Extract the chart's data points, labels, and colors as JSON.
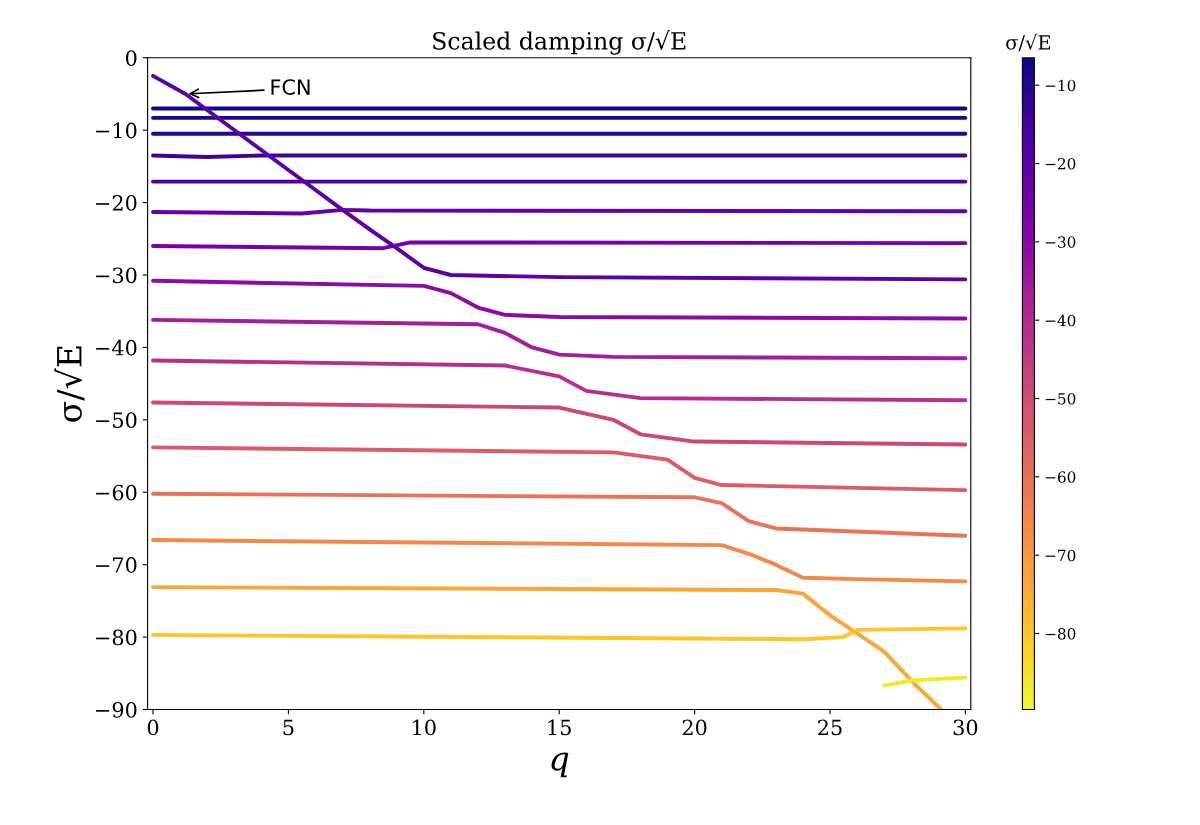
{
  "chart_data": {
    "type": "line",
    "title": "Scaled damping σ/√E",
    "xlabel": "q",
    "ylabel": "σ/√E",
    "clabel": "σ/√E",
    "xlim": [
      -0.2,
      30.2
    ],
    "ylim": [
      -90,
      0
    ],
    "xticks": [
      0,
      5,
      10,
      15,
      20,
      25,
      30
    ],
    "yticks": [
      -90,
      -80,
      -70,
      -60,
      -50,
      -40,
      -30,
      -20,
      -10,
      0
    ],
    "clim": [
      -89.7,
      -6.5
    ],
    "cticks": [
      -80,
      -70,
      -60,
      -50,
      -40,
      -30,
      -20,
      -10
    ],
    "grid": false,
    "legend": false,
    "line_style": "solid",
    "annotations": [
      {
        "text": "FCN",
        "x": 1.2,
        "y": -5
      }
    ],
    "series": [
      {
        "color": "#100787",
        "x": [
          0,
          30
        ],
        "values": [
          -7.0,
          -7.0
        ]
      },
      {
        "color": "#180790",
        "x": [
          0,
          30
        ],
        "values": [
          -8.3,
          -8.3
        ]
      },
      {
        "color": "#260591",
        "x": [
          0,
          30
        ],
        "values": [
          -10.5,
          -10.5
        ]
      },
      {
        "color": "#3a049a",
        "x": [
          0,
          2,
          4,
          30
        ],
        "values": [
          -13.5,
          -13.7,
          -13.5,
          -13.5
        ]
      },
      {
        "color": "#4c02a1",
        "x": [
          0,
          30
        ],
        "values": [
          -17.1,
          -17.1
        ]
      },
      {
        "color": "#6300a7",
        "x": [
          0,
          5.5,
          7,
          8,
          30
        ],
        "values": [
          -21.3,
          -21.5,
          -21.0,
          -21.1,
          -21.2
        ]
      },
      {
        "color": "#7701a8",
        "x": [
          0,
          8.5,
          9.5,
          30
        ],
        "values": [
          -26.0,
          -26.3,
          -25.5,
          -25.6
        ]
      },
      {
        "color": "#5c01a6",
        "x": [
          0,
          1.2,
          5,
          7,
          8,
          9,
          10,
          11,
          15,
          30
        ],
        "values": [
          -2.5,
          -5,
          -15.5,
          -21,
          -23.7,
          -26.3,
          -29,
          -30,
          -30.3,
          -30.6
        ]
      },
      {
        "color": "#8d0ba5",
        "x": [
          0,
          10,
          11,
          12,
          13,
          15,
          30
        ],
        "values": [
          -30.8,
          -31.5,
          -32.5,
          -34.5,
          -35.5,
          -35.8,
          -36.0
        ]
      },
      {
        "color": "#a31e9a",
        "x": [
          0,
          12,
          13,
          14,
          15,
          17,
          30
        ],
        "values": [
          -36.2,
          -36.8,
          -38,
          -40,
          -41,
          -41.3,
          -41.5
        ]
      },
      {
        "color": "#b6308b",
        "x": [
          0,
          13,
          15,
          16,
          18,
          30
        ],
        "values": [
          -41.8,
          -42.5,
          -44,
          -46,
          -47,
          -47.3
        ]
      },
      {
        "color": "#cb4679",
        "x": [
          0,
          15,
          17,
          18,
          20,
          30
        ],
        "values": [
          -47.6,
          -48.3,
          -50,
          -52,
          -53,
          -53.4
        ]
      },
      {
        "color": "#db5c68",
        "x": [
          0,
          17,
          19,
          20,
          21,
          30
        ],
        "values": [
          -53.8,
          -54.5,
          -55.5,
          -58,
          -59,
          -59.7
        ]
      },
      {
        "color": "#e97357",
        "x": [
          0,
          20,
          21,
          22,
          23,
          30
        ],
        "values": [
          -60.2,
          -60.7,
          -61.5,
          -64,
          -65,
          -66
        ]
      },
      {
        "color": "#f48849",
        "x": [
          0,
          21,
          22,
          23,
          24,
          26,
          30
        ],
        "values": [
          -66.6,
          -67.3,
          -68.5,
          -70,
          -71.8,
          -72,
          -72.3
        ]
      },
      {
        "color": "#fca636",
        "x": [
          0,
          23,
          24,
          25,
          26,
          27,
          28,
          29.1
        ],
        "values": [
          -73.1,
          -73.5,
          -74,
          -77,
          -79.5,
          -82,
          -86,
          -90
        ]
      },
      {
        "color": "#fdc527",
        "x": [
          0,
          24,
          25.5,
          26,
          30
        ],
        "values": [
          -79.7,
          -80.3,
          -80,
          -79,
          -78.8
        ]
      },
      {
        "color": "#f4e826",
        "x": [
          27,
          28,
          30
        ],
        "values": [
          -86.7,
          -86,
          -85.6
        ]
      }
    ]
  }
}
